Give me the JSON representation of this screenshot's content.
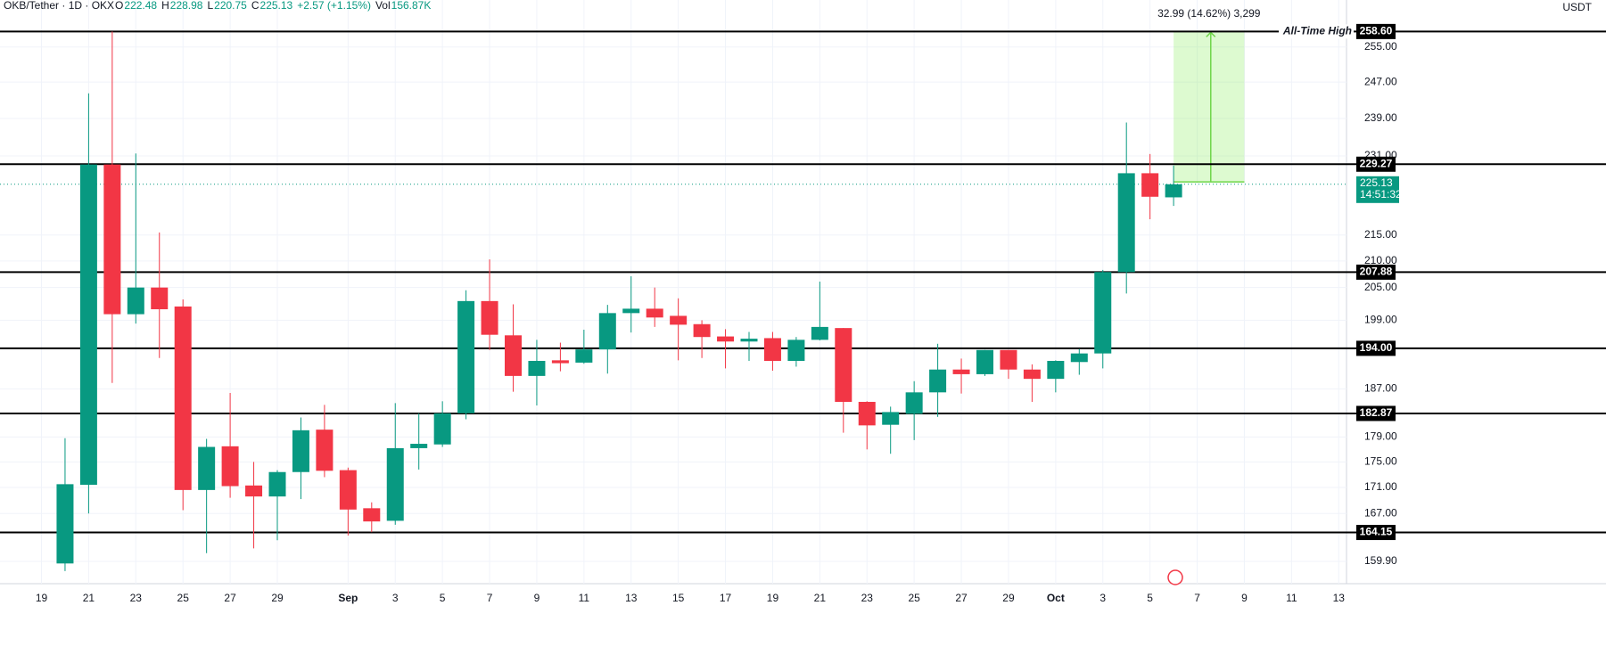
{
  "chart_data": {
    "type": "candlestick",
    "header": {
      "symbol": "OKB/Tether · 1D · OKX",
      "o": "O",
      "open": 222.48,
      "h": "H",
      "high": 228.98,
      "l": "L",
      "low": 220.75,
      "c": "C",
      "close": 225.13,
      "change": "+2.57 (+1.15%)",
      "vol_label": "Vol",
      "volume": "156.87K"
    },
    "currency": "USDT",
    "categories": [
      "19",
      null,
      "21",
      null,
      "23",
      null,
      "25",
      null,
      "27",
      null,
      "29",
      null,
      null,
      "Sep",
      null,
      "3",
      null,
      "5",
      null,
      "7",
      null,
      "9",
      null,
      "11",
      null,
      "13",
      null,
      "15",
      null,
      "17",
      null,
      "19",
      null,
      "21",
      null,
      "23",
      null,
      "25",
      null,
      "27",
      null,
      "29",
      null,
      "Oct",
      null,
      "3",
      null,
      "5",
      null,
      "7",
      null,
      "9",
      null,
      "11",
      null,
      "13"
    ],
    "open": [
      null,
      159.6,
      171.4,
      229.2,
      200.1,
      205,
      201.5,
      170.6,
      177.5,
      171.3,
      169.6,
      173.4,
      180.2,
      173.7,
      167.8,
      165.9,
      177.2,
      177.8,
      182.9,
      202.5,
      196.3,
      189.2,
      191.9,
      191.5,
      193.8,
      200.3,
      201.1,
      199.8,
      198.3,
      196.1,
      195.2,
      195.8,
      191.8,
      195.5,
      197.6,
      184.8,
      181,
      182.8,
      186.4,
      190.3,
      189.5,
      193.7,
      190.3,
      188.7,
      191.6,
      193.1,
      207.9,
      227.4,
      222.48,
      null,
      null,
      null,
      null,
      null,
      null,
      null
    ],
    "high": [
      null,
      178.8,
      244.5,
      258.6,
      231.5,
      215.5,
      202.8,
      178.7,
      186.3,
      175,
      173.7,
      182.2,
      184.3,
      174.1,
      168.7,
      184.6,
      182.9,
      184.9,
      204.5,
      210.3,
      201.9,
      195.5,
      195,
      197.3,
      201.8,
      207.1,
      205,
      203,
      199,
      197.4,
      196.9,
      196.9,
      196,
      206.1,
      197.6,
      184.9,
      184,
      188.3,
      194.8,
      192.2,
      193.7,
      193.7,
      191.2,
      191.9,
      193.9,
      208.3,
      238.1,
      231.4,
      228.98,
      null,
      null,
      null,
      null,
      null,
      null,
      null
    ],
    "low": [
      null,
      158.5,
      167,
      188,
      198.4,
      192.3,
      167.5,
      161.1,
      169.4,
      161.8,
      163,
      169.2,
      172.6,
      163.7,
      164.2,
      165.3,
      173.8,
      177.4,
      181.9,
      193.7,
      186.5,
      184.2,
      190,
      191.3,
      189.6,
      196.8,
      197.8,
      191.9,
      192.3,
      190.5,
      191.8,
      190.1,
      190.8,
      195.4,
      179.7,
      177,
      176.3,
      178.5,
      182.3,
      186.2,
      189.2,
      188.7,
      184.8,
      186.4,
      189.4,
      190.5,
      203.9,
      218.1,
      220.75,
      null,
      null,
      null,
      null,
      null,
      null,
      null
    ],
    "close": [
      null,
      171.5,
      229.2,
      200.1,
      205,
      201,
      170.6,
      177.4,
      171.2,
      169.6,
      173.4,
      180.1,
      173.6,
      167.6,
      165.8,
      177.2,
      177.9,
      182.9,
      202.5,
      196.4,
      189.2,
      191.8,
      191.4,
      193.8,
      200.3,
      201.1,
      199.5,
      198.2,
      196,
      195.2,
      195.7,
      191.8,
      195.5,
      197.8,
      184.8,
      180.9,
      183.1,
      186.4,
      190.3,
      189.5,
      193.7,
      190.3,
      188.7,
      191.8,
      193.1,
      207.9,
      227.4,
      222.6,
      225.13,
      null,
      null,
      null,
      null,
      null,
      null,
      null
    ],
    "up_color": "#089981",
    "down_color": "#f23645",
    "log_scale": true,
    "grid": true,
    "ylim": [
      156.7,
      266.1
    ],
    "yticks": [
      {
        "value": 255,
        "label": "255.00"
      },
      {
        "value": 247,
        "label": "247.00"
      },
      {
        "value": 239,
        "label": "239.00"
      },
      {
        "value": 231,
        "label": "231.00"
      },
      {
        "value": 215,
        "label": "215.00"
      },
      {
        "value": 210,
        "label": "210.00"
      },
      {
        "value": 205,
        "label": "205.00"
      },
      {
        "value": 199,
        "label": "199.00"
      },
      {
        "value": 187,
        "label": "187.00"
      },
      {
        "value": 179,
        "label": "179.00"
      },
      {
        "value": 175,
        "label": "175.00"
      },
      {
        "value": 171,
        "label": "171.00"
      },
      {
        "value": 167,
        "label": "167.00"
      },
      {
        "value": 159.9,
        "label": "159.90"
      }
    ],
    "levels": [
      {
        "value": 258.6,
        "label": "258.60"
      },
      {
        "value": 229.27,
        "label": "229.27"
      },
      {
        "value": 207.88,
        "label": "207.88"
      },
      {
        "value": 194,
        "label": "194.00"
      },
      {
        "value": 182.87,
        "label": "182.87"
      },
      {
        "value": 164.15,
        "label": "164.15"
      }
    ],
    "level_annotation": "All-Time High",
    "last_price": 225.13,
    "countdown": "14:51:32",
    "measure": {
      "from": 225.61,
      "to": 258.6,
      "label": "32.99 (14.62%) 3,299"
    }
  }
}
